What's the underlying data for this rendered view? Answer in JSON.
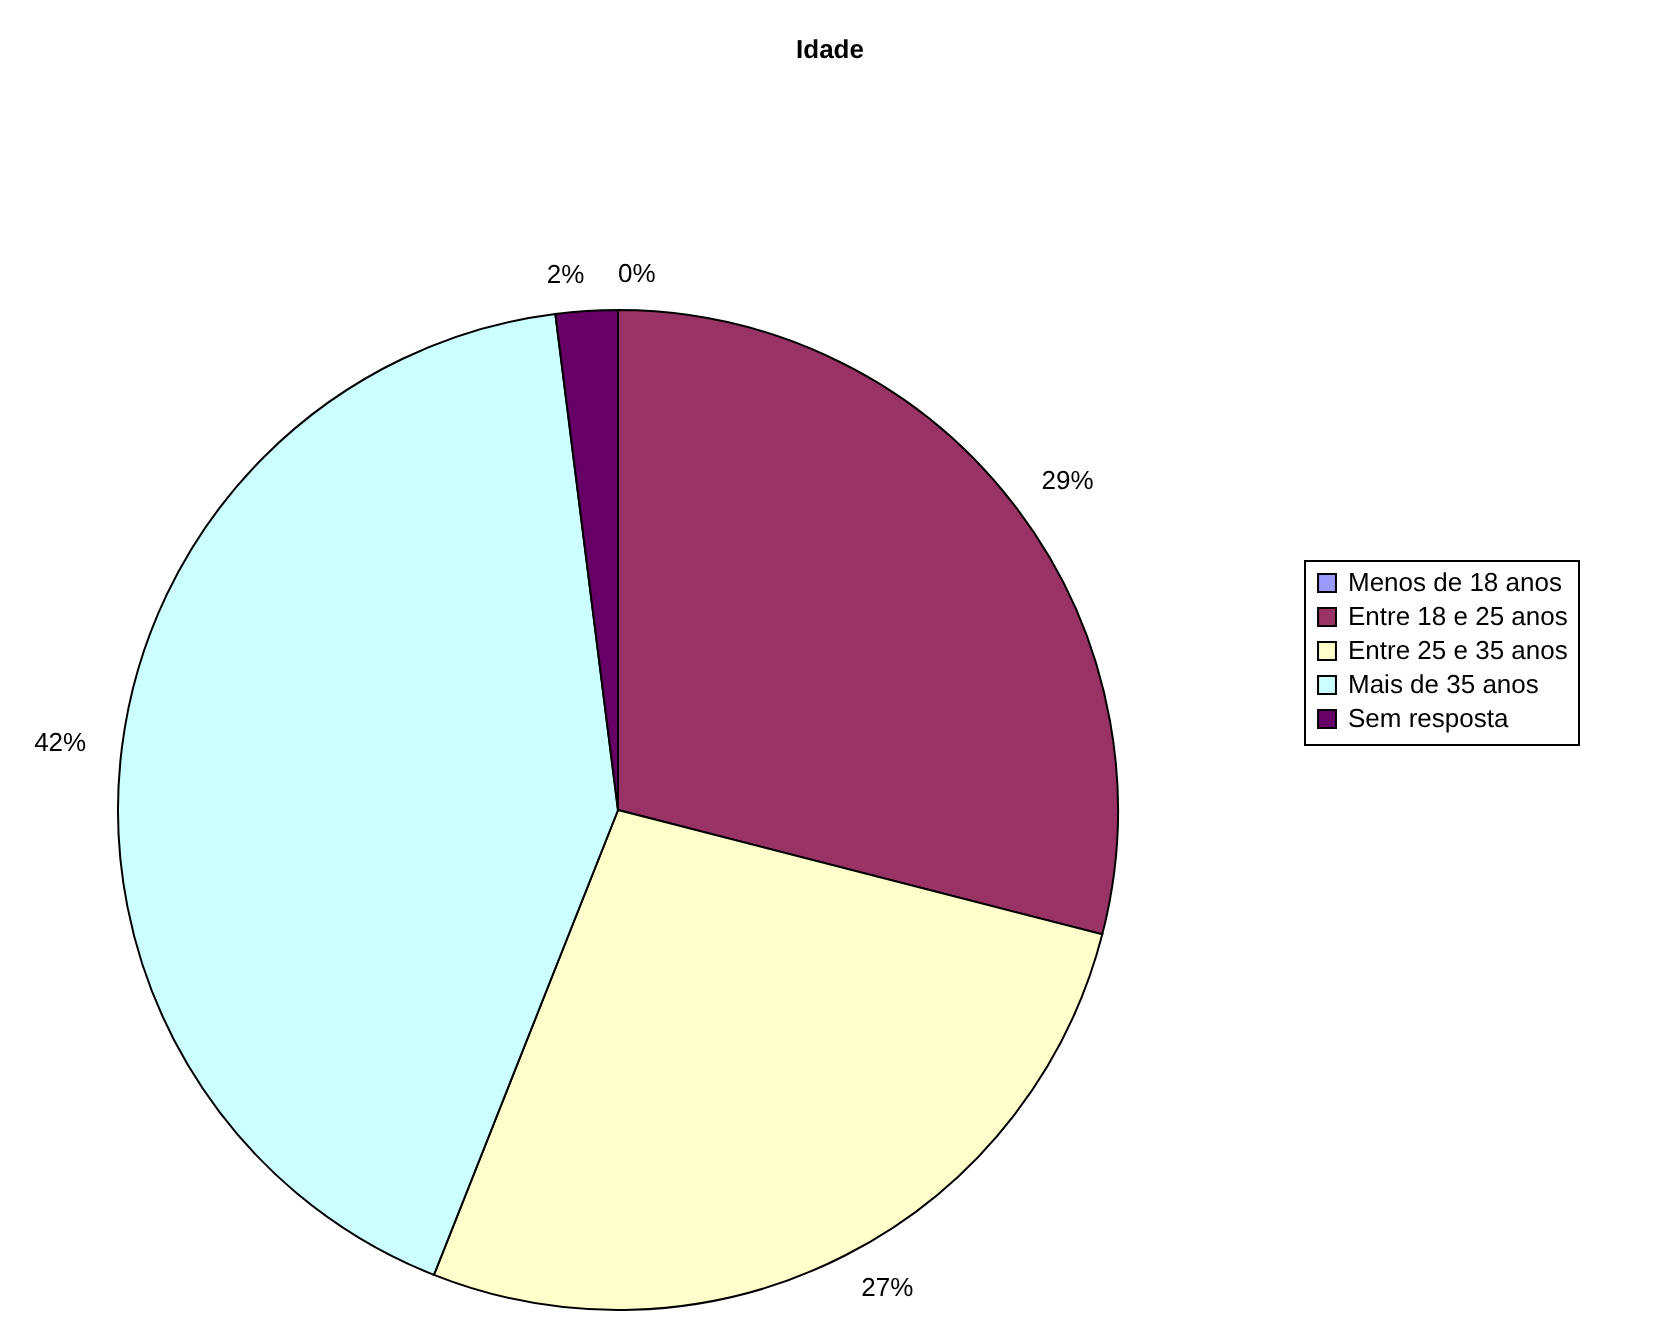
{
  "chart_data": {
    "type": "pie",
    "title": "Idade",
    "categories": [
      "Menos de 18 anos",
      "Entre 18 e 25 anos",
      "Entre 25 e 35 anos",
      "Mais de 35 anos",
      "Sem resposta"
    ],
    "values": [
      0,
      29,
      27,
      42,
      2
    ],
    "colors": [
      "#9999ff",
      "#993366",
      "#ffffcc",
      "#ccffff",
      "#660066"
    ],
    "value_labels": [
      "0%",
      "29%",
      "27%",
      "42%",
      "2%"
    ],
    "legend": "right"
  }
}
